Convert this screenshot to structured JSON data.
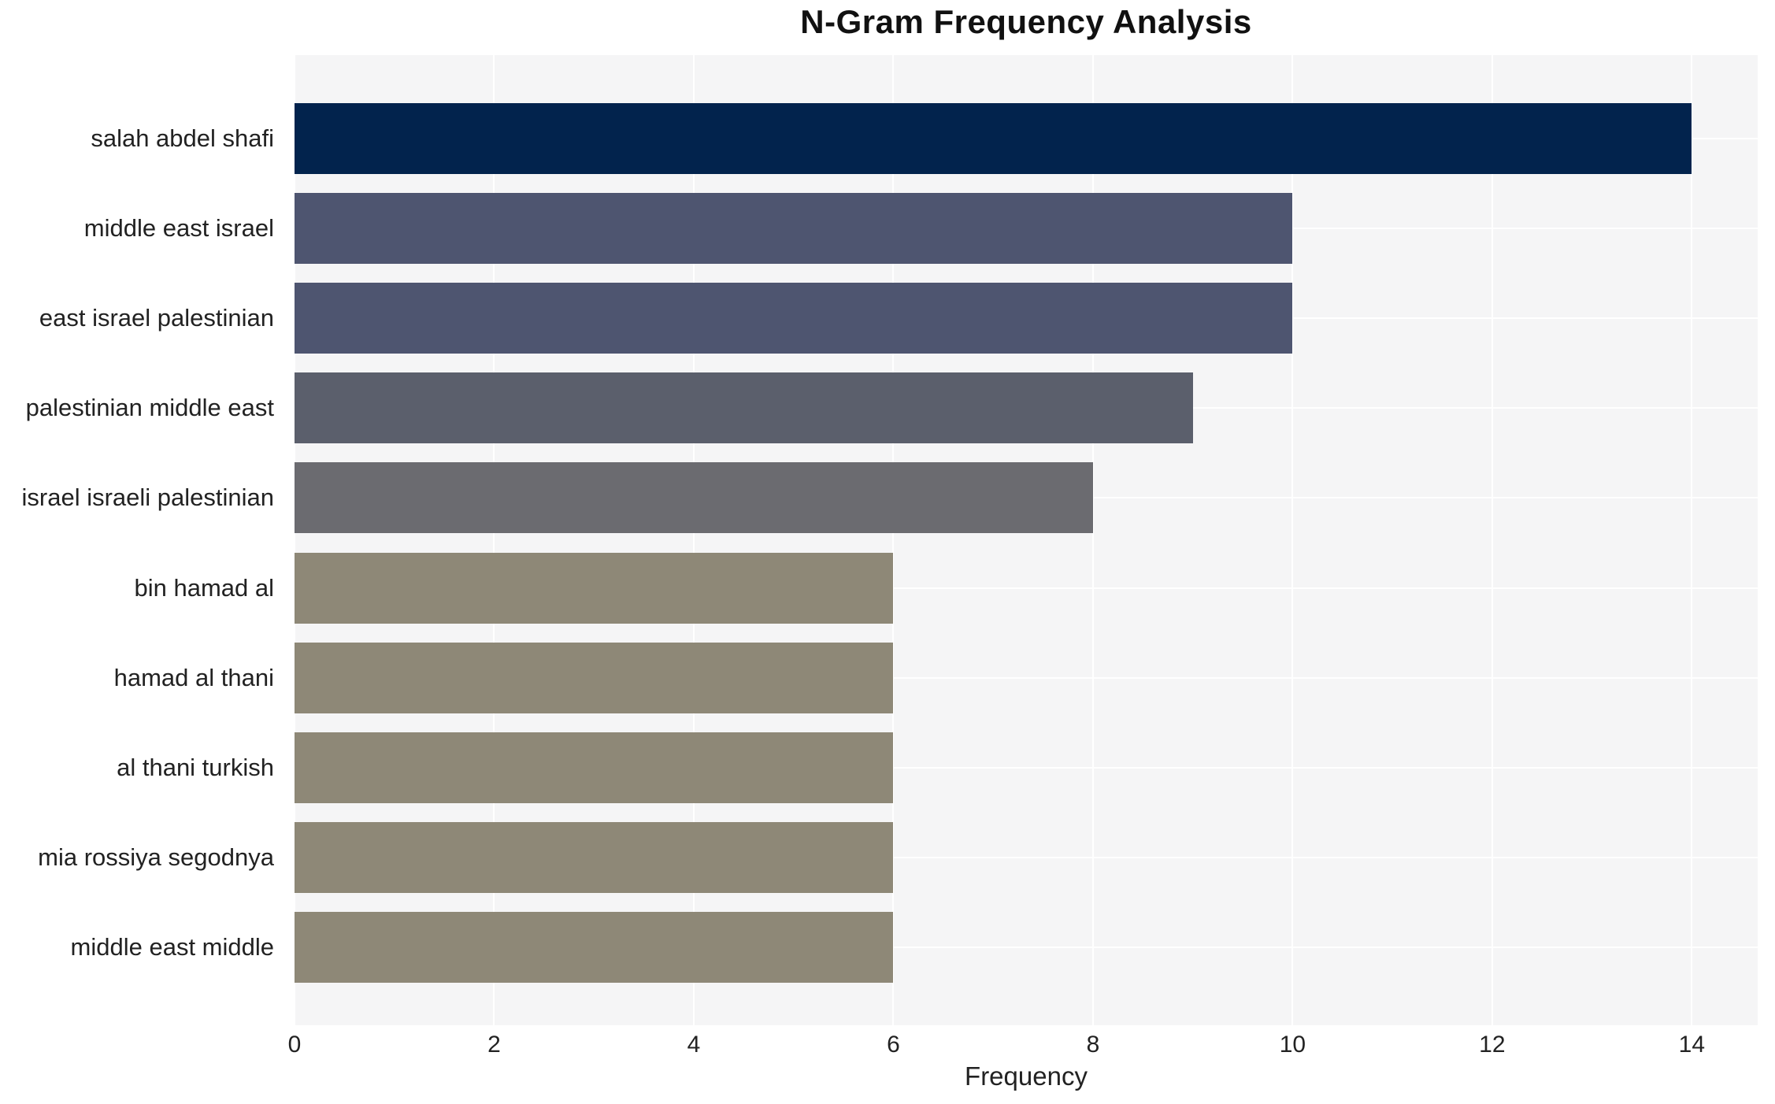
{
  "chart_data": {
    "type": "bar",
    "orientation": "horizontal",
    "title": "N-Gram Frequency Analysis",
    "xlabel": "Frequency",
    "ylabel": "",
    "categories": [
      "salah abdel shafi",
      "middle east israel",
      "east israel palestinian",
      "palestinian middle east",
      "israel israeli palestinian",
      "bin hamad al",
      "hamad al thani",
      "al thani turkish",
      "mia rossiya segodnya",
      "middle east middle"
    ],
    "values": [
      14,
      10,
      10,
      9,
      8,
      6,
      6,
      6,
      6,
      6
    ],
    "bar_colors": [
      "#02234d",
      "#4e5570",
      "#4e5570",
      "#5b5f6c",
      "#6b6b70",
      "#8e8877",
      "#8e8877",
      "#8e8877",
      "#8e8877",
      "#8e8877"
    ],
    "x_ticks": [
      0,
      2,
      4,
      6,
      8,
      10,
      12,
      14
    ],
    "xlim": [
      0,
      14.66
    ],
    "grid": true,
    "legend": false,
    "panel_background": "#f5f5f6",
    "grid_color": "#ffffff",
    "text_color": "#222222",
    "figure_background": "#ffffff"
  }
}
